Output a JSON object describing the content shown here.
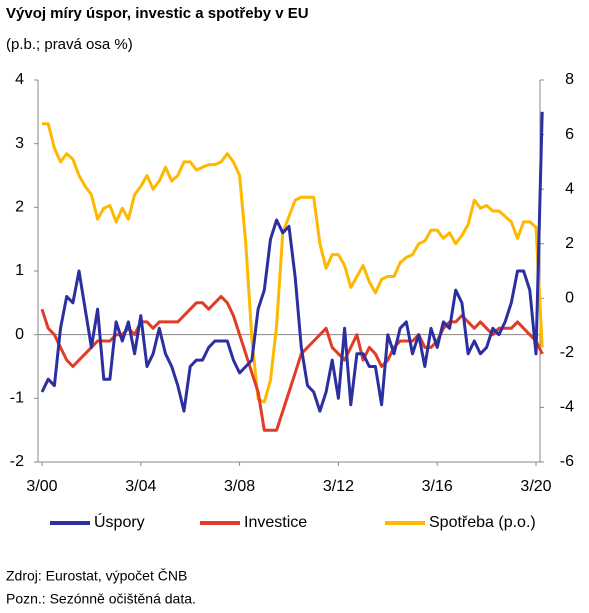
{
  "chart_data": {
    "type": "line",
    "title": "Vývoj míry úspor, investic a spotřeby v EU",
    "subtitle": "(p.b.; pravá osa %)",
    "categories": [
      "3/00",
      null,
      null,
      null,
      null,
      null,
      null,
      null,
      null,
      null,
      null,
      null,
      null,
      null,
      null,
      null,
      "3/04",
      null,
      null,
      null,
      null,
      null,
      null,
      null,
      null,
      null,
      null,
      null,
      null,
      null,
      null,
      null,
      "3/08",
      null,
      null,
      null,
      null,
      null,
      null,
      null,
      null,
      null,
      null,
      null,
      null,
      null,
      null,
      null,
      "3/12",
      null,
      null,
      null,
      null,
      null,
      null,
      null,
      null,
      null,
      null,
      null,
      null,
      null,
      null,
      null,
      "3/16",
      null,
      null,
      null,
      null,
      null,
      null,
      null,
      null,
      null,
      null,
      null,
      null,
      null,
      null,
      null,
      "3/20",
      null
    ],
    "series": [
      {
        "name": "Úspory",
        "color": "#2b2fa0",
        "values": [
          -0.9,
          -0.7,
          -0.8,
          0.1,
          0.6,
          0.5,
          1.0,
          0.4,
          -0.2,
          0.4,
          -0.7,
          -0.7,
          0.2,
          -0.1,
          0.2,
          -0.3,
          0.3,
          -0.5,
          -0.3,
          0.1,
          -0.3,
          -0.5,
          -0.8,
          -1.2,
          -0.5,
          -0.4,
          -0.4,
          -0.2,
          -0.1,
          -0.1,
          -0.1,
          -0.4,
          -0.6,
          -0.5,
          -0.4,
          0.4,
          0.7,
          1.5,
          1.8,
          1.6,
          1.7,
          0.9,
          -0.2,
          -0.8,
          -0.9,
          -1.2,
          -0.9,
          -0.4,
          -1.0,
          0.1,
          -1.1,
          -0.3,
          -0.3,
          -0.5,
          -0.5,
          -1.1,
          0.0,
          -0.3,
          0.1,
          0.2,
          -0.3,
          0.0,
          -0.5,
          0.1,
          -0.2,
          0.2,
          0.1,
          0.7,
          0.5,
          -0.3,
          -0.1,
          -0.3,
          -0.2,
          0.1,
          0.0,
          0.2,
          0.5,
          1.0,
          1.0,
          0.7,
          -0.3,
          3.5
        ]
      },
      {
        "name": "Investice",
        "color": "#e03c28",
        "values": [
          0.4,
          0.1,
          0.0,
          -0.2,
          -0.4,
          -0.5,
          -0.4,
          -0.3,
          -0.2,
          -0.1,
          -0.1,
          -0.1,
          0.0,
          0.0,
          0.1,
          0.0,
          0.2,
          0.2,
          0.1,
          0.2,
          0.2,
          0.2,
          0.2,
          0.3,
          0.4,
          0.5,
          0.5,
          0.4,
          0.5,
          0.6,
          0.5,
          0.3,
          0.0,
          -0.3,
          -0.6,
          -0.9,
          -1.5,
          -1.5,
          -1.5,
          -1.2,
          -0.9,
          -0.6,
          -0.3,
          -0.2,
          -0.1,
          0.0,
          0.1,
          -0.2,
          -0.3,
          -0.4,
          -0.2,
          0.0,
          -0.4,
          -0.2,
          -0.3,
          -0.5,
          -0.4,
          -0.2,
          -0.1,
          -0.1,
          -0.1,
          0.0,
          -0.2,
          -0.2,
          -0.1,
          0.1,
          0.2,
          0.2,
          0.3,
          0.2,
          0.1,
          0.2,
          0.1,
          0.0,
          0.1,
          0.1,
          0.1,
          0.2,
          0.1,
          0.0,
          -0.1,
          -0.3
        ]
      },
      {
        "name": "Spotřeba (p.o.)",
        "color": "#ffb800",
        "axis": "y2",
        "values": [
          6.4,
          6.4,
          5.5,
          5.0,
          5.3,
          5.1,
          4.5,
          4.1,
          3.8,
          2.9,
          3.3,
          3.4,
          2.8,
          3.3,
          2.9,
          3.8,
          4.1,
          4.5,
          4.0,
          4.3,
          4.8,
          4.3,
          4.5,
          5.0,
          5.0,
          4.7,
          4.8,
          4.9,
          4.9,
          5.0,
          5.3,
          5.0,
          4.5,
          2.0,
          -1.5,
          -3.7,
          -3.8,
          -3.0,
          -1.0,
          2.4,
          3.0,
          3.6,
          3.7,
          3.7,
          3.7,
          2.0,
          1.1,
          1.6,
          1.6,
          1.2,
          0.4,
          0.8,
          1.2,
          0.6,
          0.2,
          0.7,
          0.8,
          0.8,
          1.3,
          1.5,
          1.6,
          2.0,
          2.1,
          2.5,
          2.5,
          2.2,
          2.4,
          2.0,
          2.3,
          2.7,
          3.6,
          3.3,
          3.4,
          3.2,
          3.2,
          3.0,
          2.8,
          2.2,
          2.8,
          2.8,
          2.6,
          -1.8
        ]
      }
    ],
    "ylim": [
      -2,
      4
    ],
    "yticks": [
      -2,
      -1,
      0,
      1,
      2,
      3,
      4
    ],
    "y2lim": [
      -6,
      8
    ],
    "y2ticks": [
      -6,
      -4,
      -2,
      0,
      2,
      4,
      6,
      8
    ],
    "zero_line": true,
    "legend": "bottom",
    "notes": [
      "Zdroj: Eurostat, výpočet ČNB",
      "Pozn.: Sezónně očištěná data."
    ]
  }
}
